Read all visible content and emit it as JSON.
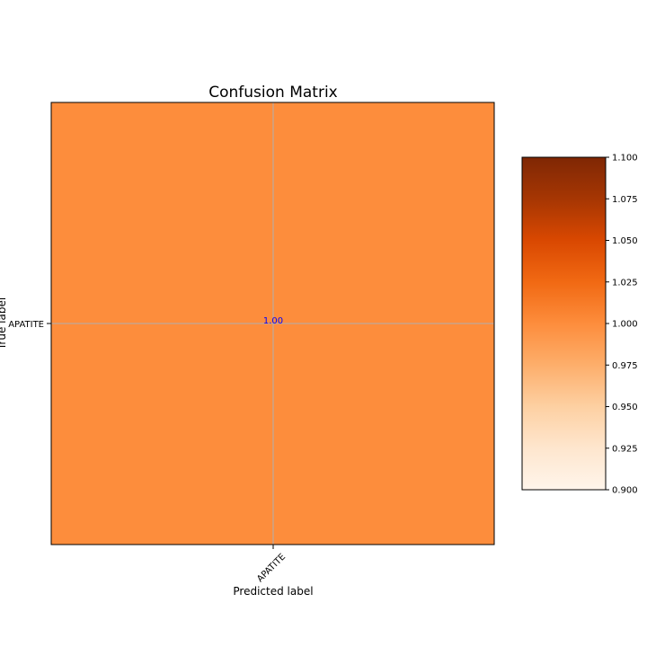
{
  "chart_data": {
    "type": "heatmap",
    "title": "Confusion Matrix",
    "xlabel": "Predicted label",
    "ylabel": "True label",
    "x_categories": [
      "APATITE"
    ],
    "y_categories": [
      "APATITE"
    ],
    "values": [
      [
        1.0
      ]
    ],
    "cell_labels": [
      [
        "1.00"
      ]
    ],
    "cell_text_color": "#0000ff",
    "colormap": "Oranges",
    "cell_color": "#fd8d3c",
    "color_range": [
      0.9,
      1.1
    ],
    "colorbar_ticks": [
      "0.900",
      "0.925",
      "0.950",
      "0.975",
      "1.000",
      "1.025",
      "1.050",
      "1.075",
      "1.100"
    ],
    "grid": true,
    "grid_color": "#b0b0b0"
  }
}
